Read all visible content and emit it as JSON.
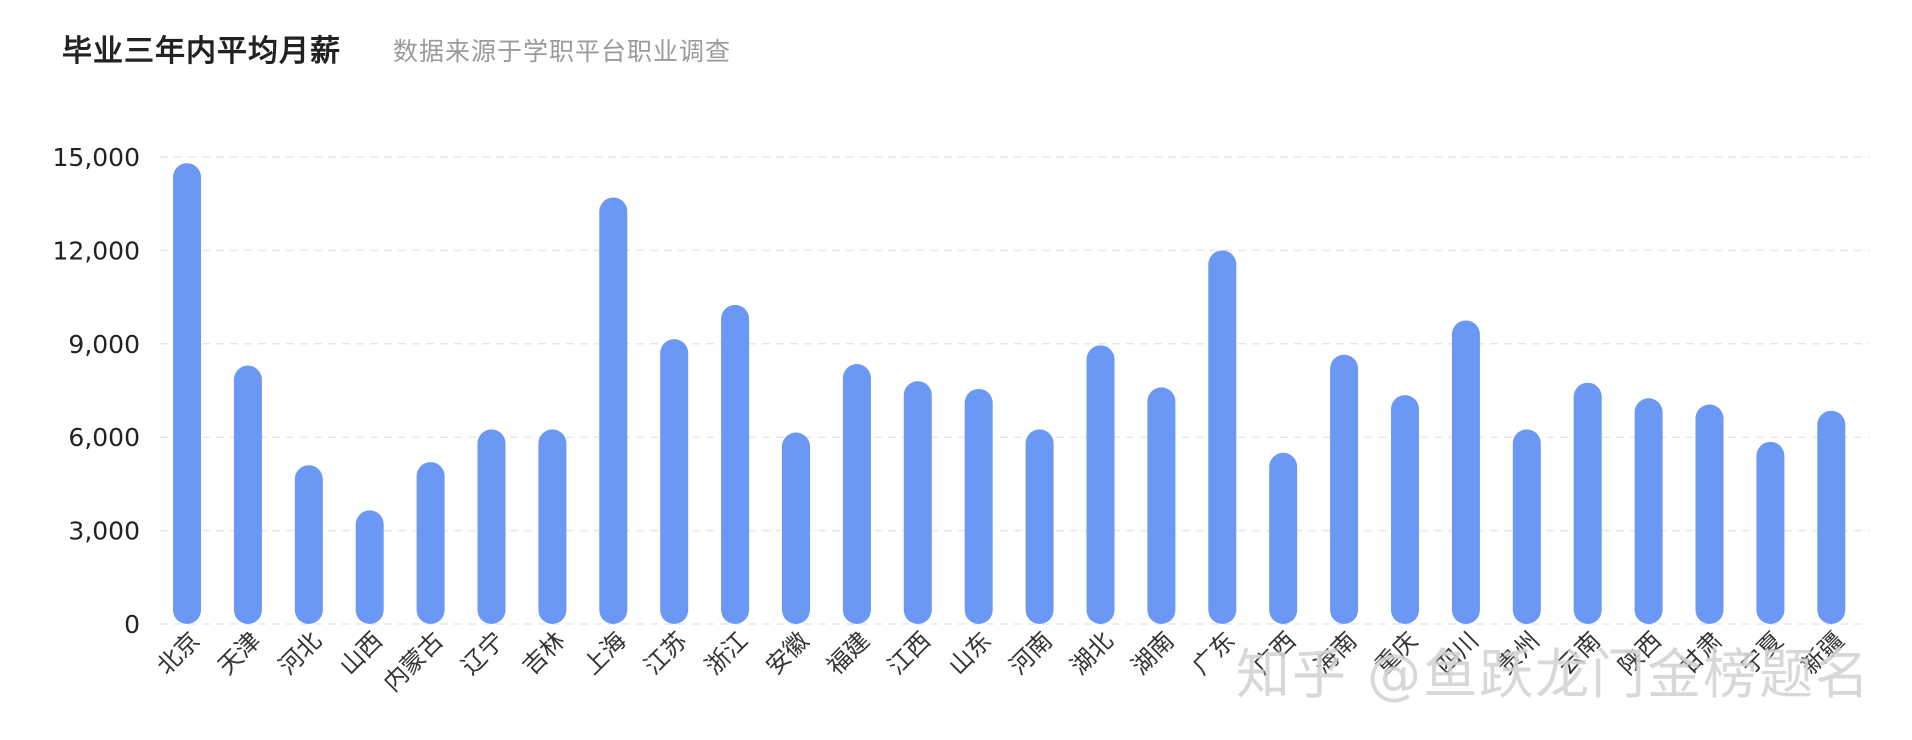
{
  "title": "毕业三年内平均月薪",
  "subtitle": "数据来源于学职平台职业调查",
  "watermark": "知乎 @鱼跃龙门金榜题名",
  "colors": {
    "bar": "#6b98f5",
    "grid": "#e6e8ee",
    "text": "#222222",
    "subtitle": "#9a9a9a"
  },
  "chart_data": {
    "type": "bar",
    "title": "毕业三年内平均月薪",
    "subtitle": "数据来源于学职平台职业调查",
    "xlabel": "",
    "ylabel": "",
    "ylim": [
      0,
      15000
    ],
    "yticks": [
      "0",
      "3,000",
      "6,000",
      "9,000",
      "12,000",
      "15,000"
    ],
    "ytick_values": [
      0,
      3000,
      6000,
      9000,
      12000,
      15000
    ],
    "grid": true,
    "bar_color": "#6b98f5",
    "categories": [
      "北京",
      "天津",
      "河北",
      "山西",
      "内蒙古",
      "辽宁",
      "吉林",
      "上海",
      "江苏",
      "浙江",
      "安徽",
      "福建",
      "江西",
      "山东",
      "河南",
      "湖北",
      "湖南",
      "广东",
      "广西",
      "海南",
      "重庆",
      "四川",
      "贵州",
      "云南",
      "陕西",
      "甘肃",
      "宁夏",
      "新疆"
    ],
    "values": [
      14800,
      8300,
      5100,
      3650,
      5200,
      6250,
      6250,
      13700,
      9150,
      10250,
      6150,
      8350,
      7800,
      7550,
      6250,
      8950,
      7600,
      12000,
      5500,
      8650,
      7350,
      9750,
      6250,
      7750,
      7250,
      7050,
      5850,
      6850
    ]
  }
}
